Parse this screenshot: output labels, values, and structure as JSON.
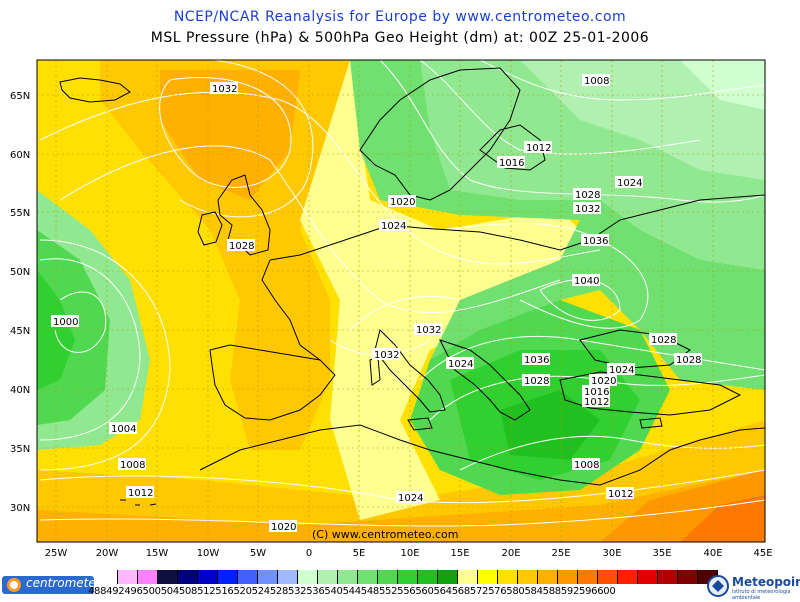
{
  "header": {
    "title": "NCEP/NCAR Reanalysis for Europe by www.centrometeo.com",
    "subtitle": "MSL Pressure (hPa) & 500hPa Geo Height (dm) at: 00Z 25-01-2006"
  },
  "map": {
    "credit": "(C) www.centrometeo.com",
    "lat_labels": [
      "65N",
      "60N",
      "55N",
      "50N",
      "45N",
      "40N",
      "35N",
      "30N"
    ],
    "lon_labels": [
      "25W",
      "20W",
      "15W",
      "10W",
      "5W",
      "0",
      "5E",
      "10E",
      "15E",
      "20E",
      "25E",
      "30E",
      "35E",
      "40E",
      "45E"
    ],
    "isobar_labels": [
      "1032",
      "1008",
      "1012",
      "1016",
      "1024",
      "1020",
      "1028",
      "1032",
      "1024",
      "1028",
      "1036",
      "1040",
      "1000",
      "1032",
      "1028",
      "1032",
      "1028",
      "1036",
      "1024",
      "1028",
      "1020",
      "1024",
      "1016",
      "1012",
      "1004",
      "1008",
      "1012",
      "1008",
      "1024",
      "1012",
      "1020"
    ]
  },
  "colorbar": {
    "values": "488492496500504508512516520524528532536540544548552556560564568572576580584588592596600",
    "colors": [
      "#ffffff",
      "#ffb8ff",
      "#ff80ff",
      "#101040",
      "#000080",
      "#0000c8",
      "#0020ff",
      "#4060ff",
      "#7090ff",
      "#a0b8ff",
      "#d0ffd0",
      "#b0f0b0",
      "#90e890",
      "#70e070",
      "#50d850",
      "#30d030",
      "#20c020",
      "#10a010",
      "#ffff90",
      "#ffff00",
      "#ffe000",
      "#ffc800",
      "#ffb000",
      "#ff9800",
      "#ff7800",
      "#ff5000",
      "#ff2000",
      "#e00000",
      "#b00000",
      "#800000",
      "#500000"
    ]
  },
  "logos": {
    "left": "centrometeo",
    "right": "Meteopoint",
    "right_sub": "Istituto di meteorologia ambientale"
  }
}
